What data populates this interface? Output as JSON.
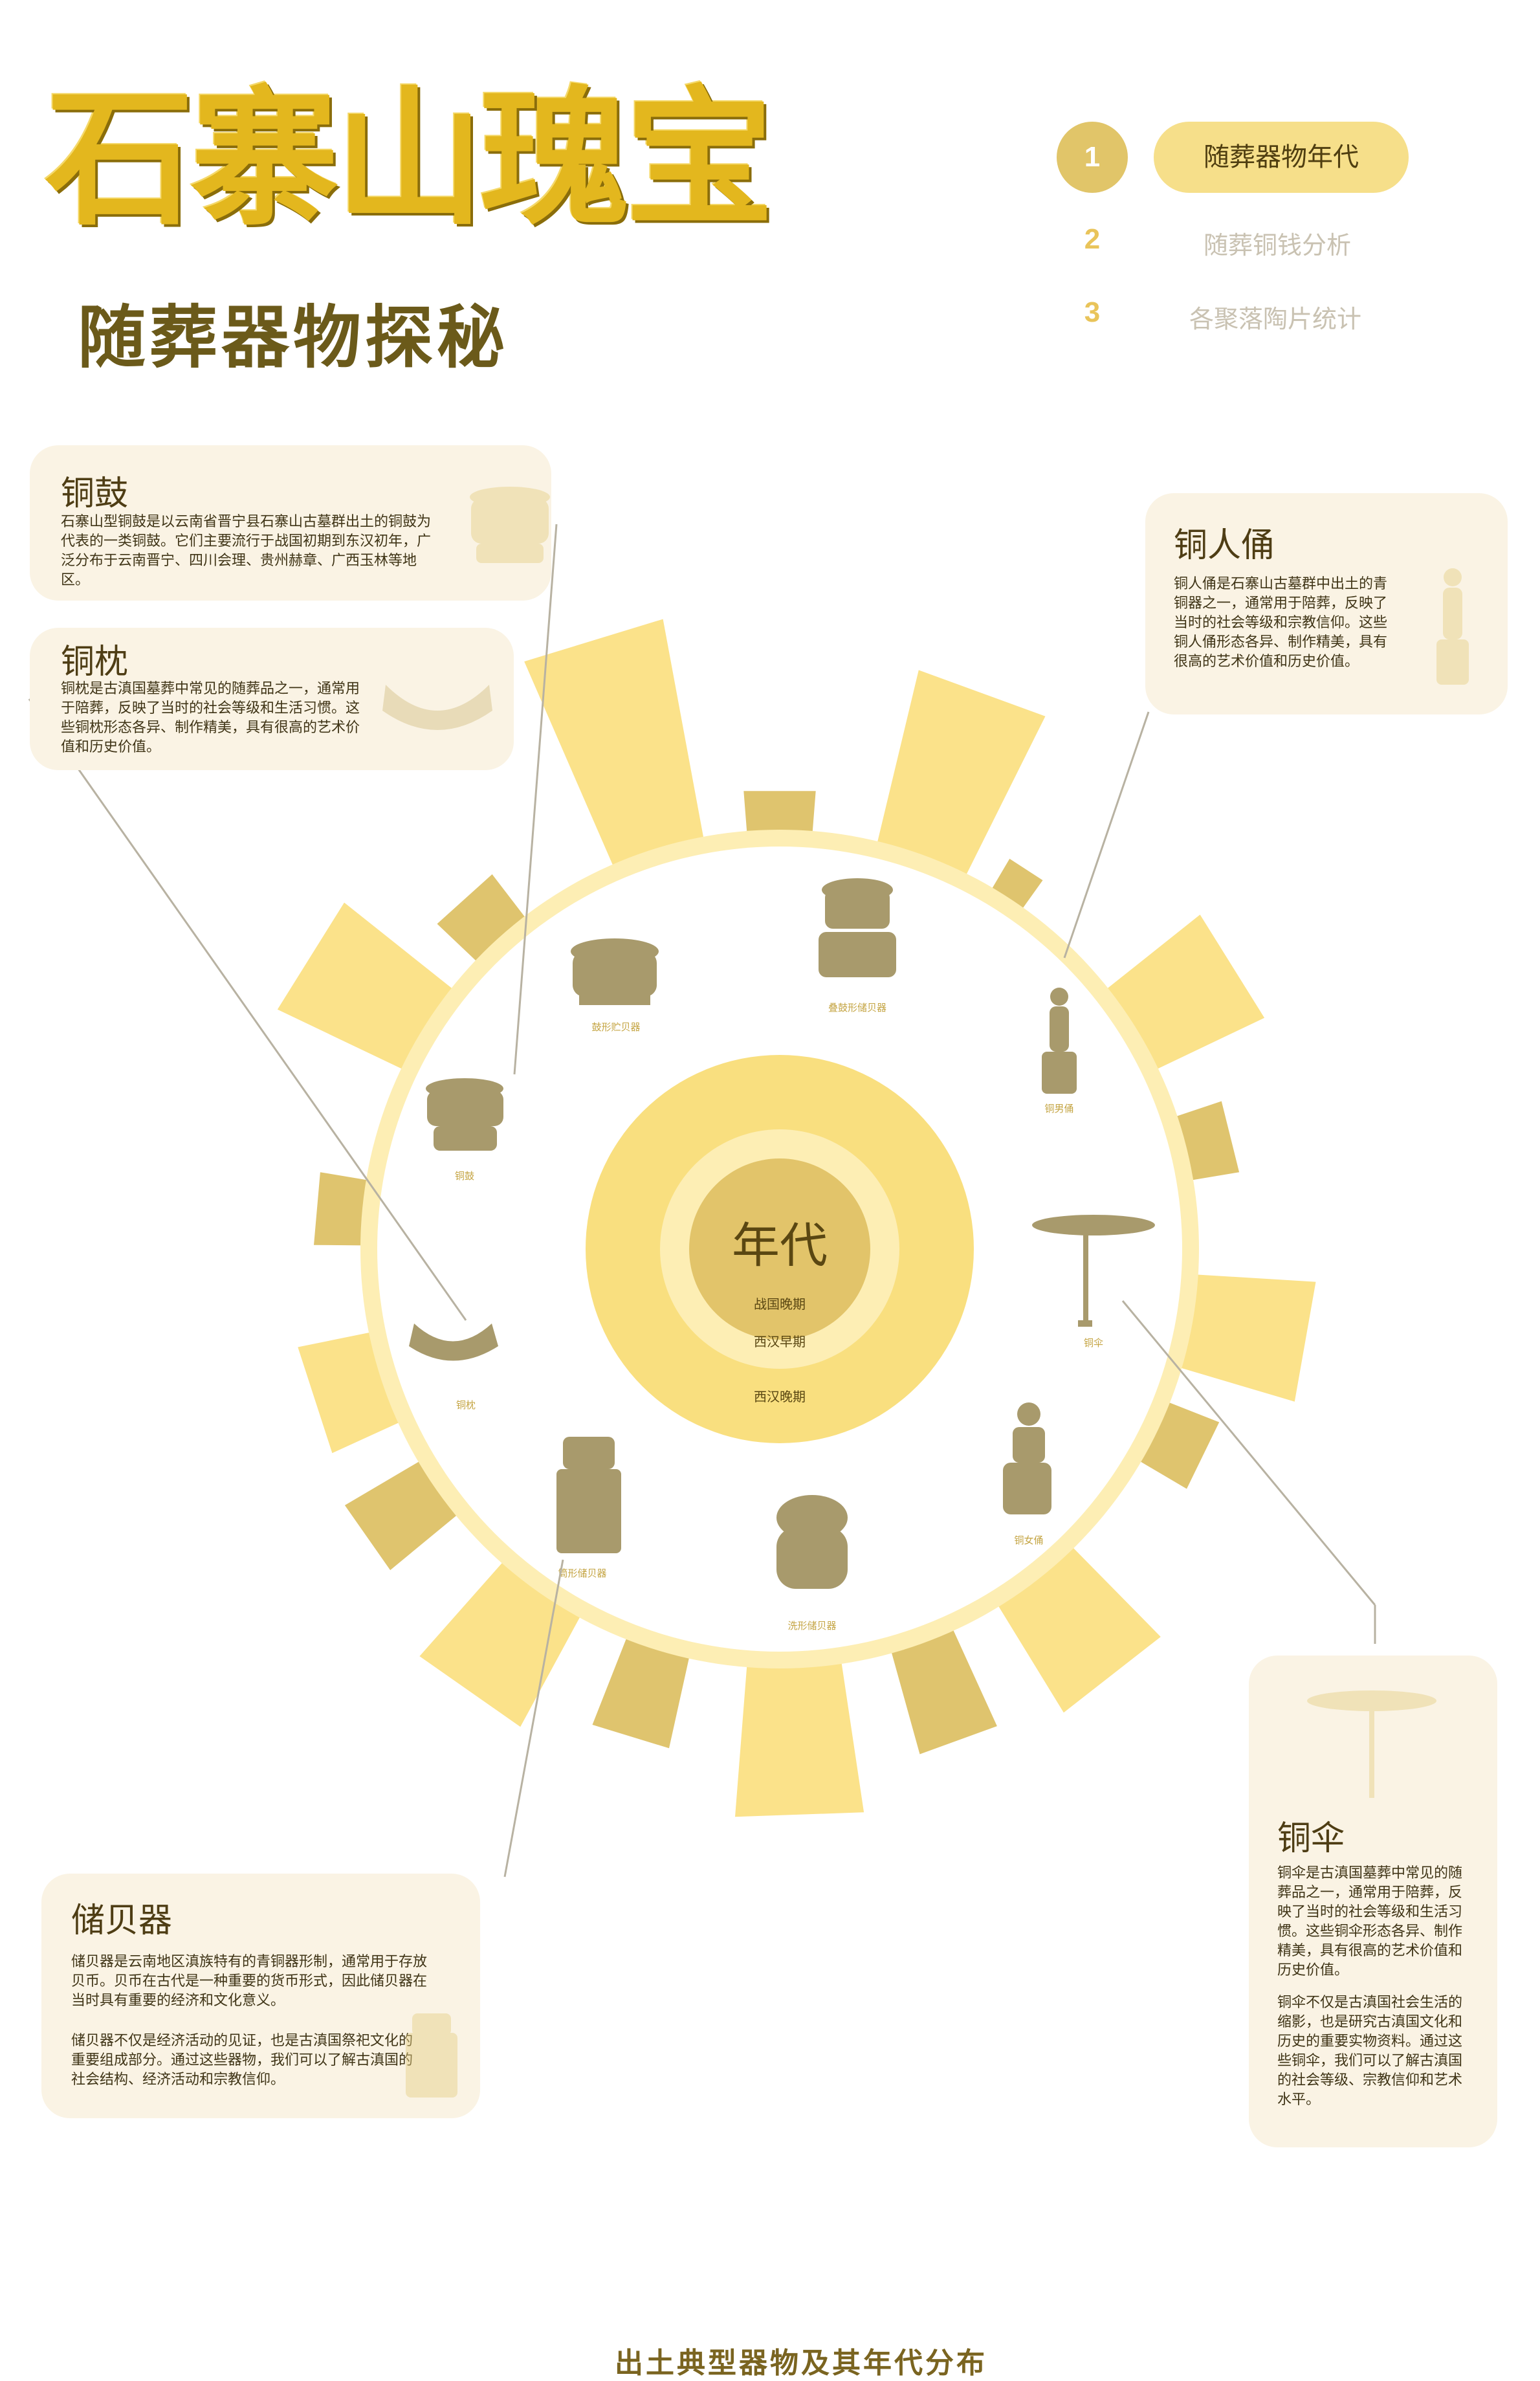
{
  "header": {
    "title": "石寨山瑰宝",
    "subtitle": "随葬器物探秘"
  },
  "nav": {
    "steps": [
      {
        "num": "1",
        "label": "随葬器物年代",
        "active": true
      },
      {
        "num": "2",
        "label": "随葬铜钱分析",
        "active": false
      },
      {
        "num": "3",
        "label": "各聚落陶片统计",
        "active": false
      }
    ]
  },
  "cards": {
    "tonggu": {
      "title": "铜鼓",
      "text": "石寨山型铜鼓是以云南省晋宁县石寨山古墓群出土的铜鼓为代表的一类铜鼓。它们主要流行于战国初期到东汉初年，广泛分布于云南晋宁、四川会理、贵州赫章、广西玉林等地区。"
    },
    "tongzhen": {
      "title": "铜枕",
      "text": "铜枕是古滇国墓葬中常见的随葬品之一，通常用于陪葬，反映了当时的社会等级和生活习惯。这些铜枕形态各异、制作精美，具有很高的艺术价值和历史价值。"
    },
    "tongrenyong": {
      "title": "铜人俑",
      "text": "铜人俑是石寨山古墓群中出土的青铜器之一，通常用于陪葬，反映了当时的社会等级和宗教信仰。这些铜人俑形态各异、制作精美，具有很高的艺术价值和历史价值。"
    },
    "tongsan": {
      "title": "铜伞",
      "text1": "铜伞是古滇国墓葬中常见的随葬品之一，通常用于陪葬，反映了当时的社会等级和生活习惯。这些铜伞形态各异、制作精美，具有很高的艺术价值和历史价值。",
      "text2": "铜伞不仅是古滇国社会生活的缩影，也是研究古滇国文化和历史的重要实物资料。通过这些铜伞，我们可以了解古滇国的社会等级、宗教信仰和艺术水平。"
    },
    "chubeiqi": {
      "title": "储贝器",
      "text1": "储贝器是云南地区滇族特有的青铜器形制，通常用于存放贝币。贝币在古代是一种重要的货币形式，因此储贝器在当时具有重要的经济和文化意义。",
      "text2": "储贝器不仅是经济活动的见证，也是古滇国祭祀文化的重要组成部分。通过这些器物，我们可以了解古滇国的社会结构、经济活动和宗教信仰。"
    }
  },
  "chart_data": {
    "type": "radial-bar",
    "center_title": "年代",
    "rings": [
      "战国晚期",
      "西汉早期",
      "西汉晚期"
    ],
    "items": [
      "鼓形贮贝器",
      "叠鼓形储贝器",
      "铜男俑",
      "铜伞",
      "铜女俑",
      "洗形储贝器",
      "筒形储贝器",
      "铜枕",
      "铜鼓"
    ],
    "colors": {
      "light": "#fbe28a",
      "dark": "#dfc46e",
      "ring": "#fdeeb4",
      "center": "#f9df7f",
      "core": "#e2c46a"
    }
  },
  "footer": {
    "caption": "出土典型器物及其年代分布"
  }
}
